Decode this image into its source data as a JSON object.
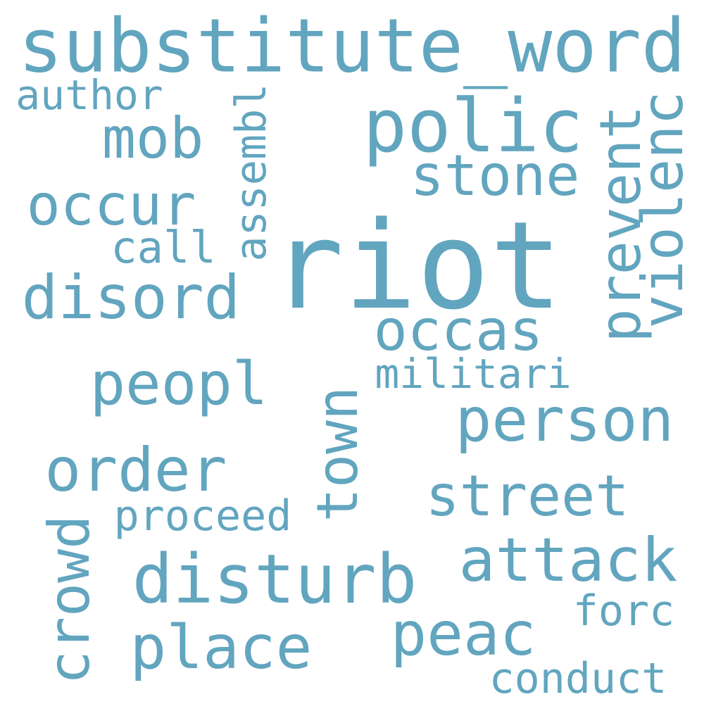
{
  "text_color": "#62a5bf",
  "background": "#ffffff",
  "words": {
    "substitute_word": "substitute_word",
    "author": "author",
    "mob": "mob",
    "assembl": "assembl",
    "polic": "polic",
    "prevent": "prevent",
    "violenc": "violenc",
    "stone": "stone",
    "occur": "occur",
    "call": "call",
    "riot": "riot",
    "disord": "disord",
    "occas": "occas",
    "militari": "militari",
    "peopl": "peopl",
    "person": "person",
    "town": "town",
    "order": "order",
    "street": "street",
    "proceed": "proceed",
    "crowd": "crowd",
    "attack": "attack",
    "disturb": "disturb",
    "forc": "forc",
    "peac": "peac",
    "place": "place",
    "conduct": "conduct"
  }
}
